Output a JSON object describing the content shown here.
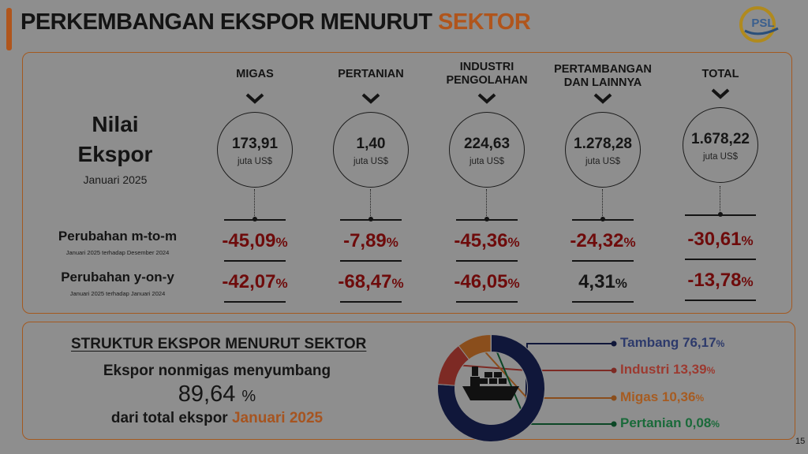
{
  "title": {
    "main": "PERKEMBANGAN EKSPOR MENURUT",
    "highlight": "SEKTOR"
  },
  "logo": {
    "text": "PSL"
  },
  "nilai": {
    "line1": "Nilai",
    "line2": "Ekspor",
    "period": "Januari 2025"
  },
  "sectors": [
    {
      "name": "MIGAS",
      "value": "173,91",
      "unit": "juta US$",
      "mtm": "-45,09",
      "yoy": "-42,07"
    },
    {
      "name": "PERTANIAN",
      "value": "1,40",
      "unit": "juta US$",
      "mtm": "-7,89",
      "yoy": "-68,47"
    },
    {
      "name": "INDUSTRI PENGOLAHAN",
      "value": "224,63",
      "unit": "juta US$",
      "mtm": "-45,36",
      "yoy": "-46,05"
    },
    {
      "name": "PERTAMBANGAN DAN LAINNYA",
      "value": "1.278,28",
      "unit": "juta US$",
      "mtm": "-24,32",
      "yoy": "4,31"
    },
    {
      "name": "TOTAL",
      "value": "1.678,22",
      "unit": "juta US$",
      "mtm": "-30,61",
      "yoy": "-13,78"
    }
  ],
  "rows": {
    "mtm": {
      "label": "Perubahan m-to-m",
      "sub": "Januari 2025 terhadap Desember 2024"
    },
    "yoy": {
      "label": "Perubahan y-on-y",
      "sub": "Januari 2025 terhadap Januari 2024"
    }
  },
  "percent_symbol": "%",
  "structure": {
    "title": "STRUKTUR EKSPOR MENURUT SEKTOR",
    "line1": "Ekspor nonmigas menyumbang",
    "value": "89,64",
    "pct_symbol": "%",
    "line3_text": "dari total ekspor",
    "line3_highlight": "Januari 2025"
  },
  "page_number": "15",
  "chart_data": {
    "type": "pie",
    "title": "STRUKTUR EKSPOR MENURUT SEKTOR",
    "slices": [
      {
        "label": "Tambang",
        "value": 76.17,
        "display": "Tambang 76,17",
        "color": "#10173a"
      },
      {
        "label": "Industri",
        "value": 13.39,
        "display": "Industri 13,39",
        "color": "#7d2a24"
      },
      {
        "label": "Migas",
        "value": 10.36,
        "display": "Migas 10,36",
        "color": "#8a4e1c"
      },
      {
        "label": "Pertanian",
        "value": 0.08,
        "display": "Pertanian 0,08",
        "color": "#0c4726"
      }
    ],
    "center_icon": "cargo-ship-icon"
  }
}
